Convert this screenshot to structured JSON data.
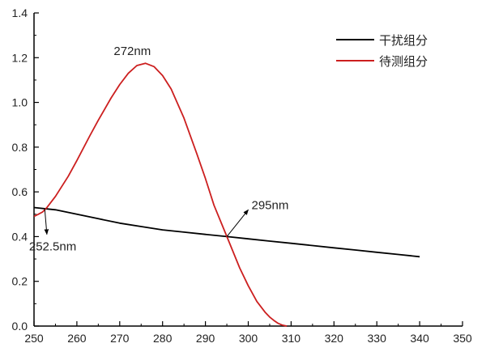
{
  "chart_data": {
    "type": "line",
    "title": "",
    "xlabel": "",
    "ylabel": "",
    "xlim": [
      250,
      350
    ],
    "ylim": [
      0,
      1.4
    ],
    "xticks": [
      "250",
      "260",
      "270",
      "280",
      "290",
      "300",
      "310",
      "320",
      "330",
      "340",
      "350"
    ],
    "yticks": [
      "0.0",
      "0.2",
      "0.4",
      "0.6",
      "0.8",
      "1.0",
      "1.2",
      "1.4"
    ],
    "grid": false,
    "legend_position": "top-right",
    "series": [
      {
        "name": "干扰组分",
        "color": "#000000",
        "x": [
          250,
          255,
          260,
          265,
          270,
          275,
          280,
          285,
          290,
          295,
          300,
          305,
          310,
          315,
          320,
          325,
          330,
          335,
          340
        ],
        "y": [
          0.53,
          0.52,
          0.5,
          0.48,
          0.46,
          0.445,
          0.43,
          0.42,
          0.41,
          0.4,
          0.39,
          0.38,
          0.37,
          0.36,
          0.35,
          0.34,
          0.33,
          0.32,
          0.31
        ]
      },
      {
        "name": "待测组分",
        "color": "#cc1f1f",
        "x": [
          250,
          251,
          252,
          253,
          255,
          258,
          260,
          263,
          265,
          268,
          270,
          272,
          274,
          276,
          278,
          280,
          282,
          285,
          288,
          290,
          292,
          295,
          298,
          300,
          302,
          304,
          305,
          306,
          307,
          308,
          309
        ],
        "y": [
          0.49,
          0.5,
          0.51,
          0.53,
          0.58,
          0.67,
          0.74,
          0.85,
          0.92,
          1.02,
          1.08,
          1.13,
          1.165,
          1.175,
          1.16,
          1.12,
          1.06,
          0.93,
          0.77,
          0.66,
          0.54,
          0.4,
          0.26,
          0.18,
          0.11,
          0.06,
          0.04,
          0.025,
          0.012,
          0.004,
          0.0
        ]
      }
    ],
    "annotations": [
      {
        "text": "272nm",
        "x": 272,
        "y": 1.22,
        "arrow": false
      },
      {
        "text": "295nm",
        "x": 295,
        "y": 0.4,
        "label_x": 300,
        "label_y": 0.52,
        "arrow": true
      },
      {
        "text": "252.5nm",
        "x": 252.5,
        "y": 0.525,
        "label_x": 253,
        "label_y": 0.41,
        "arrow": true
      }
    ]
  }
}
